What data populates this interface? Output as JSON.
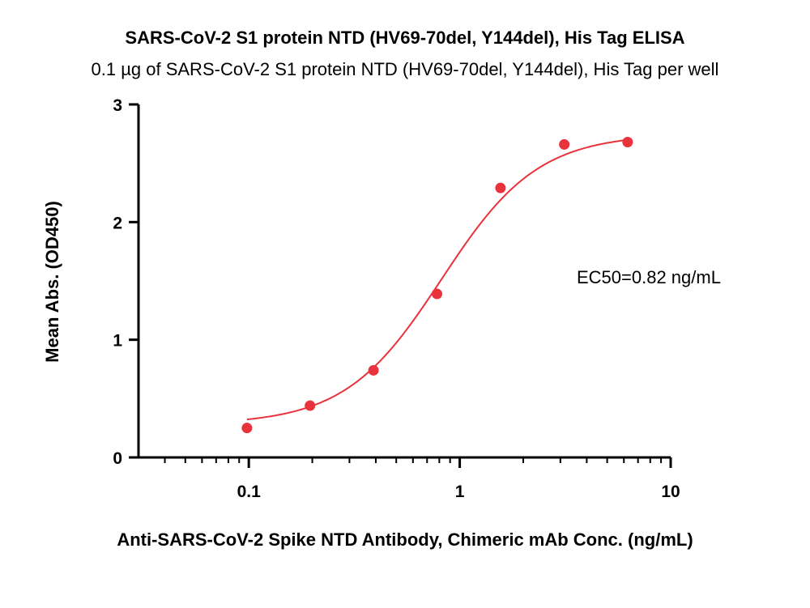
{
  "chart_data": {
    "type": "scatter",
    "title": "SARS-CoV-2 S1 protein NTD (HV69-70del, Y144del), His Tag ELISA",
    "subtitle": "0.1 µg of SARS-CoV-2 S1 protein NTD (HV69-70del, Y144del), His Tag per well",
    "xlabel": "Anti-SARS-CoV-2 Spike NTD Antibody, Chimeric mAb Conc. (ng/mL)",
    "ylabel": "Mean Abs. (OD450)",
    "x_scale": "log",
    "xlim": [
      0.03,
      10
    ],
    "ylim": [
      0,
      3
    ],
    "x_ticks": [
      0.1,
      1,
      10
    ],
    "x_tick_labels": [
      "0.1",
      "1",
      "10"
    ],
    "y_ticks": [
      0,
      1,
      2,
      3
    ],
    "y_tick_labels": [
      "0",
      "1",
      "2",
      "3"
    ],
    "grid": false,
    "color": "#e8323c",
    "series": [
      {
        "x": [
          0.098,
          0.195,
          0.39,
          0.78,
          1.56,
          3.13,
          6.25
        ],
        "y": [
          0.25,
          0.44,
          0.74,
          1.39,
          2.29,
          2.66,
          2.68
        ]
      }
    ],
    "fit_curve": {
      "model": "4PL",
      "bottom": 0.28,
      "top": 2.75,
      "ec50": 0.82,
      "hill": 1.9,
      "x_range": [
        0.098,
        6.25
      ]
    },
    "annotation": "EC50=0.82 ng/mL"
  }
}
